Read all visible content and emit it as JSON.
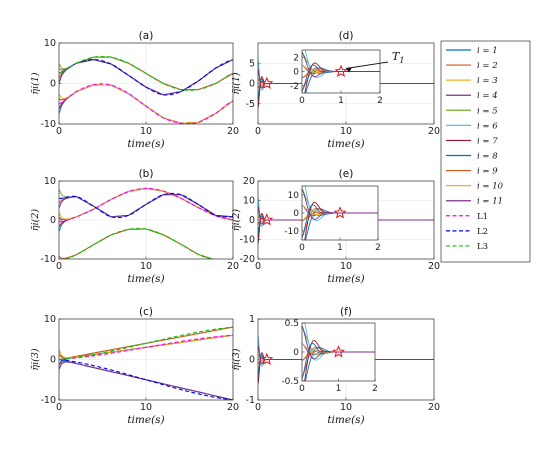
{
  "chart_data": {
    "type": "line",
    "legend": {
      "placement": "right",
      "entries": [
        {
          "label": "i = 1",
          "color": "#0072BD",
          "dash": false
        },
        {
          "label": "i = 2",
          "color": "#D95319",
          "dash": false
        },
        {
          "label": "i = 3",
          "color": "#EDB120",
          "dash": false
        },
        {
          "label": "i = 4",
          "color": "#7E2F8E",
          "dash": false
        },
        {
          "label": "i = 5",
          "color": "#77AC30",
          "dash": false
        },
        {
          "label": "i = 6",
          "color": "#4DBEEE",
          "dash": false
        },
        {
          "label": "i = 7",
          "color": "#A2142F",
          "dash": false
        },
        {
          "label": "i = 8",
          "color": "#0072BD",
          "dash": false
        },
        {
          "label": "i = 9",
          "color": "#D95319",
          "dash": false
        },
        {
          "label": "i = 10",
          "color": "#EDB120",
          "dash": false
        },
        {
          "label": "i = 11",
          "color": "#7E2F8E",
          "dash": false
        },
        {
          "label": "L1",
          "color": "#FF00FF",
          "dash": true
        },
        {
          "label": "L2",
          "color": "#0000FF",
          "dash": true
        },
        {
          "label": "L3",
          "color": "#00CC00",
          "dash": true
        }
      ]
    },
    "panels": [
      {
        "id": "a",
        "title": "(a)",
        "ylabel": "η̄i(1)",
        "xlabel": "time(s)",
        "xlim": [
          0,
          20
        ],
        "ylim": [
          -10,
          10
        ],
        "xticks": [
          0,
          10,
          20
        ],
        "yticks": [
          -10,
          0,
          10
        ],
        "grid": true,
        "leaders": [
          {
            "name": "L1",
            "x": [
              0,
              2,
              4,
              6,
              8,
              10,
              12,
              14,
              16,
              18,
              20
            ],
            "y": [
              -5.0,
              -2.0,
              -0.3,
              -0.4,
              -2.5,
              -5.6,
              -8.5,
              -9.8,
              -9.6,
              -7.4,
              -4.3
            ]
          },
          {
            "name": "L2",
            "x": [
              0,
              2,
              4,
              6,
              8,
              10,
              12,
              14,
              16,
              18,
              20
            ],
            "y": [
              2.5,
              5.0,
              5.9,
              4.8,
              2.0,
              -0.9,
              -2.8,
              -2.0,
              0.6,
              3.8,
              5.9
            ]
          },
          {
            "name": "L3",
            "x": [
              0,
              2,
              4,
              6,
              8,
              10,
              12,
              14,
              16,
              18,
              20
            ],
            "y": [
              2.5,
              5.0,
              6.5,
              6.5,
              5.0,
              2.5,
              0.0,
              -1.5,
              -1.5,
              0.0,
              2.5
            ]
          }
        ]
      },
      {
        "id": "b",
        "title": "(b)",
        "ylabel": "η̄i(2)",
        "xlabel": "time(s)",
        "xlim": [
          0,
          20
        ],
        "ylim": [
          -10,
          10
        ],
        "xticks": [
          0,
          10,
          20
        ],
        "yticks": [
          -10,
          0,
          10
        ],
        "grid": true,
        "leaders": [
          {
            "name": "L1",
            "x": [
              0,
              2,
              4,
              6,
              8,
              10,
              12,
              14,
              16,
              18,
              20
            ],
            "y": [
              -0.5,
              0.8,
              2.8,
              5.3,
              7.3,
              8.1,
              7.4,
              5.6,
              3.2,
              1.1,
              0.0
            ]
          },
          {
            "name": "L2",
            "x": [
              0,
              2,
              4,
              6,
              8,
              10,
              12,
              14,
              16,
              18,
              20
            ],
            "y": [
              5.5,
              6.0,
              3.5,
              0.8,
              1.2,
              4.0,
              6.5,
              6.5,
              4.0,
              1.2,
              0.8
            ]
          },
          {
            "name": "L3",
            "x": [
              0,
              2,
              4,
              6,
              8,
              10,
              12,
              14,
              16,
              18,
              20
            ],
            "y": [
              -10.5,
              -8.9,
              -6.3,
              -3.8,
              -2.4,
              -2.3,
              -3.8,
              -6.2,
              -8.8,
              -10.3,
              -10.6
            ]
          }
        ]
      },
      {
        "id": "c",
        "title": "(c)",
        "ylabel": "η̄i(3)",
        "xlabel": "time(s)",
        "xlim": [
          0,
          20
        ],
        "ylim": [
          -10,
          10
        ],
        "xticks": [
          0,
          10,
          20
        ],
        "yticks": [
          -10,
          0,
          10
        ],
        "grid": true,
        "leaders": [
          {
            "name": "L1",
            "x": [
              0,
              20
            ],
            "y": [
              0,
              6
            ]
          },
          {
            "name": "L2",
            "x": [
              0,
              20
            ],
            "y": [
              0,
              -10
            ]
          },
          {
            "name": "L3",
            "x": [
              0,
              20
            ],
            "y": [
              0,
              8
            ]
          }
        ]
      },
      {
        "id": "d",
        "title": "(d)",
        "ylabel": "η̃i(1)",
        "xlabel": "time(s)",
        "xlim": [
          0,
          20
        ],
        "ylim": [
          -10,
          10
        ],
        "xticks": [
          0,
          10,
          20
        ],
        "yticks": [
          -5,
          0,
          5
        ],
        "grid": true,
        "star": {
          "x": 1,
          "y": 0
        },
        "annotation": "T1",
        "inset": {
          "xlim": [
            0,
            2
          ],
          "ylim": [
            -3,
            3
          ],
          "xticks": [
            0,
            1,
            2
          ],
          "yticks": [
            -2,
            0,
            2
          ],
          "star": {
            "x": 1,
            "y": 0
          }
        }
      },
      {
        "id": "e",
        "title": "(e)",
        "ylabel": "η̃i(2)",
        "xlabel": "time(s)",
        "xlim": [
          0,
          20
        ],
        "ylim": [
          -20,
          20
        ],
        "xticks": [
          0,
          10,
          20
        ],
        "yticks": [
          -20,
          -10,
          0,
          10,
          20
        ],
        "grid": true,
        "star": {
          "x": 1,
          "y": 0
        },
        "inset": {
          "xlim": [
            0,
            2
          ],
          "ylim": [
            -15,
            15
          ],
          "xticks": [
            0,
            1,
            2
          ],
          "yticks": [
            -10,
            0,
            10
          ],
          "star": {
            "x": 1,
            "y": 0
          }
        }
      },
      {
        "id": "f",
        "title": "(f)",
        "ylabel": "η̃i(3)",
        "xlabel": "time(s)",
        "xlim": [
          0,
          20
        ],
        "ylim": [
          -1,
          1
        ],
        "xticks": [
          0,
          10,
          20
        ],
        "yticks": [
          -1,
          0,
          1
        ],
        "grid": true,
        "star": {
          "x": 1,
          "y": 0
        },
        "inset": {
          "xlim": [
            0,
            2
          ],
          "ylim": [
            -0.5,
            0.5
          ],
          "xticks": [
            0,
            1,
            2
          ],
          "yticks": [
            -0.5,
            0,
            0.5
          ],
          "star": {
            "x": 1,
            "y": 0
          }
        }
      }
    ]
  }
}
